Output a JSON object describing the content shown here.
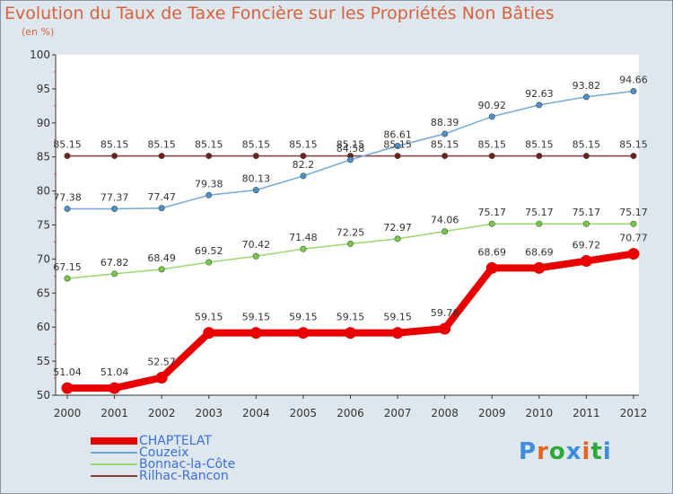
{
  "header": {
    "title": "Evolution du Taux de Taxe Foncière sur les Propriétés Non Bâties",
    "unit": "(en %)"
  },
  "logo": {
    "text": "Proxiti",
    "colors": [
      "#3b8ede",
      "#e8641e",
      "#2fa83a",
      "#3b8ede",
      "#e8641e",
      "#2fa83a",
      "#3b8ede"
    ]
  },
  "chart_data": {
    "type": "line",
    "title": "Evolution du Taux de Taxe Foncière sur les Propriétés Non Bâties",
    "ylabel": "(en %)",
    "xlabel": "",
    "ylim": [
      50,
      100
    ],
    "yticks": [
      50,
      55,
      60,
      65,
      70,
      75,
      80,
      85,
      90,
      95,
      100
    ],
    "grid": false,
    "categories": [
      "2000",
      "2001",
      "2002",
      "2003",
      "2004",
      "2005",
      "2006",
      "2007",
      "2008",
      "2009",
      "2010",
      "2011",
      "2012"
    ],
    "series": [
      {
        "name": "CHAPTELAT",
        "color": "#e80000",
        "line_width": 8,
        "values": [
          51.04,
          51.04,
          52.57,
          59.15,
          59.15,
          59.15,
          59.15,
          59.15,
          59.76,
          68.69,
          68.69,
          69.72,
          70.77
        ],
        "labels": [
          "51.04",
          "51.04",
          "52.57",
          "59.15",
          "59.15",
          "59.15",
          "59.15",
          "59.15",
          "59.76",
          "68.69",
          "68.69",
          "69.72",
          "70.77"
        ]
      },
      {
        "name": "Couzeix",
        "color": "#73a8d6",
        "line_width": 1.5,
        "values": [
          77.38,
          77.37,
          77.47,
          79.38,
          80.13,
          82.2,
          84.58,
          86.61,
          88.39,
          90.92,
          92.63,
          93.82,
          94.66
        ],
        "labels": [
          "77.38",
          "77.37",
          "77.47",
          "79.38",
          "80.13",
          "82.2",
          "84.58",
          "86.61",
          "88.39",
          "90.92",
          "92.63",
          "93.82",
          "94.66"
        ]
      },
      {
        "name": "Bonnac-la-Côte",
        "color": "#9ad86b",
        "line_width": 1.5,
        "values": [
          67.15,
          67.82,
          68.49,
          69.52,
          70.42,
          71.48,
          72.25,
          72.97,
          74.06,
          75.17,
          75.17,
          75.17,
          75.17
        ],
        "labels": [
          "67.15",
          "67.82",
          "68.49",
          "69.52",
          "70.42",
          "71.48",
          "72.25",
          "72.97",
          "74.06",
          "75.17",
          "75.17",
          "75.17",
          "75.17"
        ]
      },
      {
        "name": "Rilhac-Rancon",
        "color": "#8a3a3a",
        "line_width": 1.5,
        "values": [
          85.15,
          85.15,
          85.15,
          85.15,
          85.15,
          85.15,
          85.15,
          85.15,
          85.15,
          85.15,
          85.15,
          85.15,
          85.15
        ],
        "labels": [
          "85.15",
          "85.15",
          "85.15",
          "85.15",
          "85.15",
          "85.15",
          "85.15",
          "85.15",
          "85.15",
          "85.15",
          "85.15",
          "85.15",
          "85.15"
        ]
      }
    ],
    "legend_position": "bottom-left"
  }
}
